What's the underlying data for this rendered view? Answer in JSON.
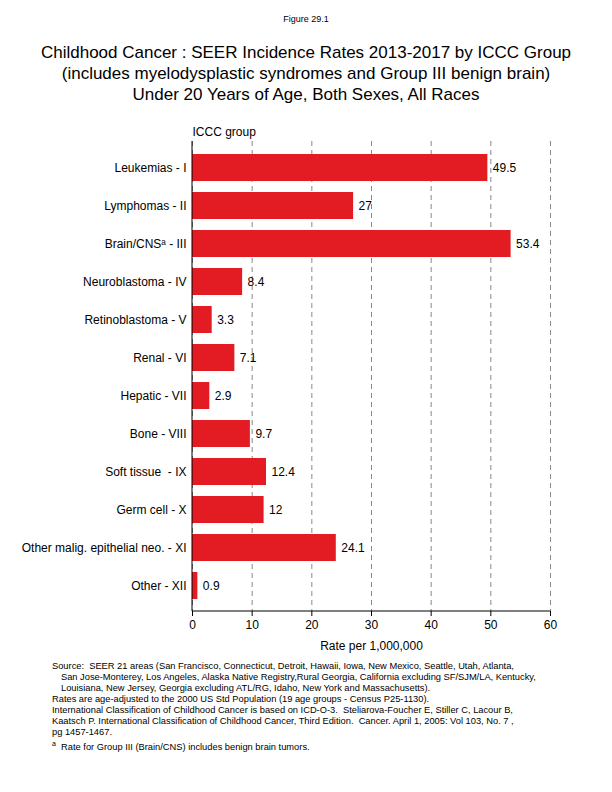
{
  "chart_data": {
    "type": "bar",
    "orientation": "horizontal",
    "figure_label": "Figure 29.1",
    "title": "Childhood Cancer : SEER Incidence Rates 2013-2017 by ICCC Group",
    "subtitle": [
      "(includes myelodysplastic syndromes and Group III benign brain)",
      "Under 20 Years of Age, Both Sexes, All Races"
    ],
    "y_label": "ICCC group",
    "x_label": "Rate per 1,000,000",
    "categories": [
      "Leukemias - I",
      "Lymphomas - II",
      "Brain/CNSᵃ - III",
      "Neuroblastoma - IV",
      "Retinoblastoma - V",
      "Renal - VI",
      "Hepatic - VII",
      "Bone - VIII",
      "Soft tissue  - IX",
      "Germ cell - X",
      "Other malig. epithelial neo. - XI",
      "Other - XII"
    ],
    "values": [
      49.5,
      27,
      53.4,
      8.4,
      3.3,
      7.1,
      2.9,
      9.7,
      12.4,
      12,
      24.1,
      0.9
    ],
    "color": "#e31b23",
    "xlim": [
      0,
      60
    ],
    "xticks": [
      0,
      10,
      20,
      30,
      40,
      50,
      60
    ],
    "grid": true,
    "data_labels": true,
    "notes": [
      "Source:  SEER 21 areas (San Francisco, Connecticut, Detroit, Hawaii, Iowa, New Mexico, Seattle, Utah, Atlanta,",
      "San Jose-Monterey, Los Angeles, Alaska Native Registry,Rural Georgia, California excluding SF/SJM/LA, Kentucky,",
      "Louisiana, New Jersey, Georgia excluding ATL/RG, Idaho, New York and Massachusetts).",
      "Rates are age-adjusted to the 2000 US Std Population (19 age groups - Census P25-1130).",
      "International Classification of Childhood Cancer is based on ICD-O-3.  Steliarova-Foucher E, Stiller C, Lacour B,",
      "Kaatsch P. International Classification of Childhood Cancer, Third Edition.  Cancer. April 1, 2005: Vol 103, No. 7 ,",
      "pg 1457-1467."
    ],
    "footnote": {
      "marker": "a",
      "text": "Rate for Group III (Brain/CNS) includes benign brain tumors."
    }
  }
}
